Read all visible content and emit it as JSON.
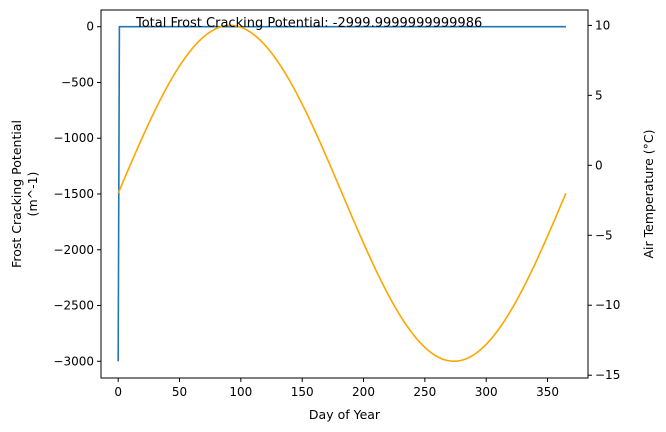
{
  "chart_data": {
    "type": "line",
    "xlabel": "Day of Year",
    "ylabel_left_lines": [
      "Frost Cracking Potential",
      "(m^-1)"
    ],
    "ylabel_right": "Air Temperature (°C)",
    "annotation": "Total Frost Cracking Potential: -2999.9999999999986",
    "xlim": [
      -14,
      383
    ],
    "ylim_left": [
      -3150,
      150
    ],
    "ylim_right": [
      -15.2,
      11.1
    ],
    "x_ticks": [
      0,
      50,
      100,
      150,
      200,
      250,
      300,
      350
    ],
    "y_left_ticks": [
      0,
      -500,
      -1000,
      -1500,
      -2000,
      -2500,
      -3000
    ],
    "y_right_ticks": [
      10,
      5,
      0,
      -5,
      -10,
      -15
    ],
    "grid": false,
    "legend": "none",
    "series": [
      {
        "axis": "left",
        "color": "#1f77b4",
        "points": [
          [
            0,
            -3000
          ],
          [
            1,
            0
          ],
          [
            365,
            0
          ]
        ]
      },
      {
        "axis": "right",
        "color": "#ffa500",
        "function": "sine",
        "mean": -2,
        "amplitude": 12,
        "period_days": 365,
        "phase_day": 0,
        "x_range": [
          0,
          365
        ],
        "peak": [
          91,
          10
        ],
        "trough": [
          274,
          -14
        ]
      }
    ]
  }
}
